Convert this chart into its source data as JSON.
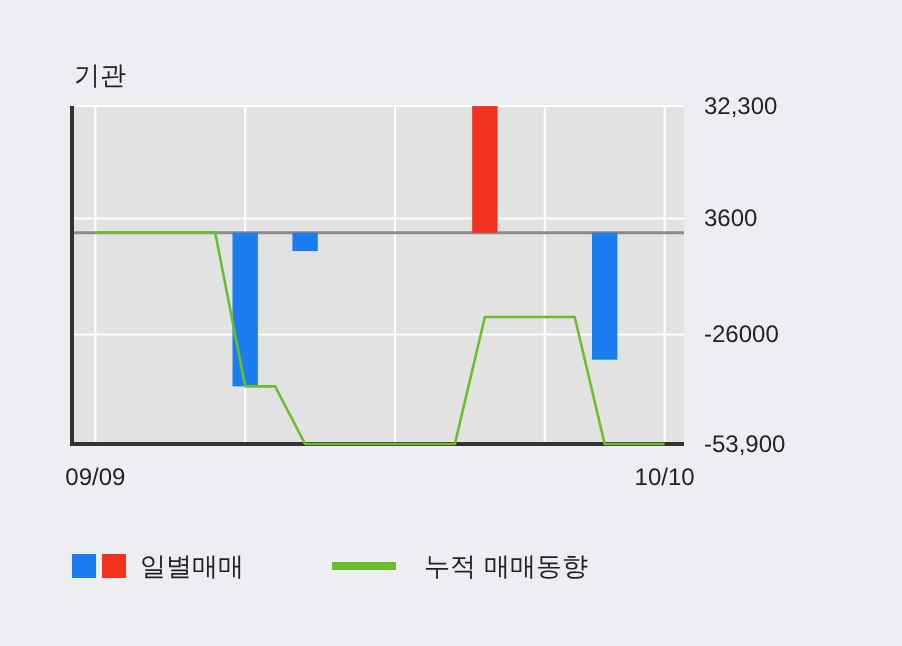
{
  "chart_data": {
    "type": "bar",
    "title": "기관",
    "categories": [
      "09/09",
      null,
      null,
      null,
      null,
      null,
      null,
      null,
      null,
      null,
      null,
      null,
      null,
      null,
      null,
      null,
      null,
      null,
      null,
      "10/10"
    ],
    "series": [
      {
        "name": "일별매매",
        "colors": [
          null,
          null,
          null,
          null,
          null,
          "#1a7ef0",
          null,
          "#1a7ef0",
          null,
          null,
          null,
          null,
          null,
          "#f0321e",
          null,
          null,
          null,
          "#1a7ef0",
          null,
          null
        ],
        "values": [
          null,
          null,
          null,
          null,
          null,
          -39200,
          null,
          -4700,
          null,
          null,
          null,
          null,
          null,
          32300,
          null,
          null,
          null,
          -32400,
          null,
          null
        ]
      },
      {
        "name": "누적 매매동향",
        "type": "line",
        "color": "#6cbd2c",
        "values": [
          0,
          0,
          0,
          0,
          0,
          -39200,
          -39200,
          -53900,
          -53900,
          -53900,
          -53900,
          -53900,
          -53900,
          -21500,
          -21500,
          -21500,
          -21500,
          -53900,
          -53900,
          -53900
        ]
      }
    ],
    "ylim": [
      -53900,
      32300
    ],
    "yticks": [
      {
        "value": 32300,
        "label": "32,300"
      },
      3600,
      -26000,
      {
        "value": -53900,
        "label": "-53,900"
      }
    ],
    "ref_lines": [
      {
        "axis": "y",
        "value": 0,
        "color": "#8c8c8c"
      }
    ],
    "grid": true,
    "legend": "bottom"
  }
}
